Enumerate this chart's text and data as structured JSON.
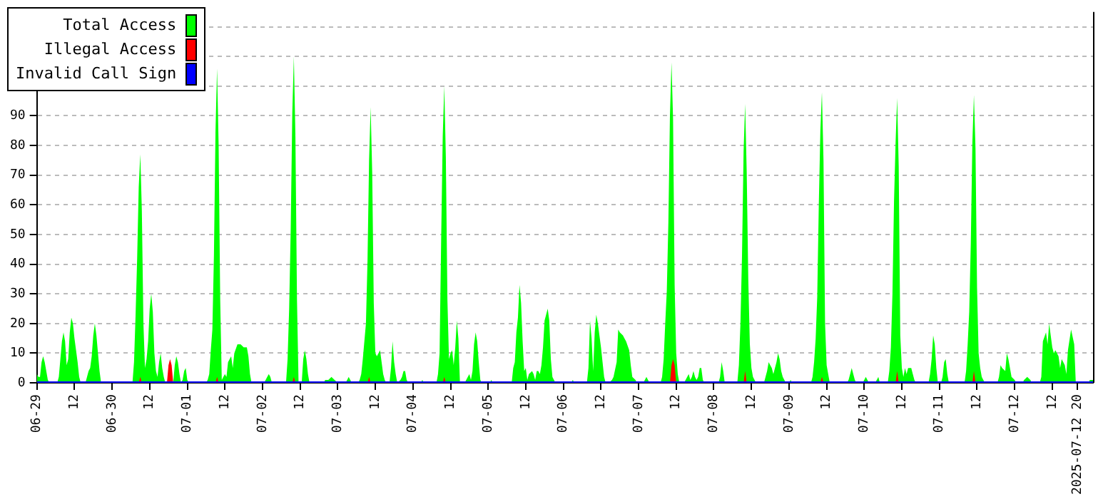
{
  "chart_data": {
    "type": "area",
    "xlim": [
      "2025-06-29T00:00",
      "2025-07-13T01:00"
    ],
    "ylim": [
      0,
      125
    ],
    "xticks": [
      {
        "value": "2025-06-29T00:00",
        "label": "06-29"
      },
      {
        "value": "2025-06-29T12:00",
        "label": "12"
      },
      {
        "value": "2025-06-30T00:00",
        "label": "06-30"
      },
      {
        "value": "2025-06-30T12:00",
        "label": "12"
      },
      {
        "value": "2025-07-01T00:00",
        "label": "07-01"
      },
      {
        "value": "2025-07-01T12:00",
        "label": "12"
      },
      {
        "value": "2025-07-02T00:00",
        "label": "07-02"
      },
      {
        "value": "2025-07-02T12:00",
        "label": "12"
      },
      {
        "value": "2025-07-03T00:00",
        "label": "07-03"
      },
      {
        "value": "2025-07-03T12:00",
        "label": "12"
      },
      {
        "value": "2025-07-04T00:00",
        "label": "07-04"
      },
      {
        "value": "2025-07-04T12:00",
        "label": "12"
      },
      {
        "value": "2025-07-05T00:00",
        "label": "07-05"
      },
      {
        "value": "2025-07-05T12:00",
        "label": "12"
      },
      {
        "value": "2025-07-06T00:00",
        "label": "07-06"
      },
      {
        "value": "2025-07-06T12:00",
        "label": "12"
      },
      {
        "value": "2025-07-07T00:00",
        "label": "07-07"
      },
      {
        "value": "2025-07-07T12:00",
        "label": "12"
      },
      {
        "value": "2025-07-08T00:00",
        "label": "07-08"
      },
      {
        "value": "2025-07-08T12:00",
        "label": "12"
      },
      {
        "value": "2025-07-09T00:00",
        "label": "07-09"
      },
      {
        "value": "2025-07-09T12:00",
        "label": "12"
      },
      {
        "value": "2025-07-10T00:00",
        "label": "07-10"
      },
      {
        "value": "2025-07-10T12:00",
        "label": "12"
      },
      {
        "value": "2025-07-11T00:00",
        "label": "07-11"
      },
      {
        "value": "2025-07-11T12:00",
        "label": "12"
      },
      {
        "value": "2025-07-12T00:00",
        "label": "07-12"
      },
      {
        "value": "2025-07-12T12:00",
        "label": "12"
      },
      {
        "value": "2025-07-12T20:00",
        "label": "2025-07-12 20"
      }
    ],
    "yticks": [
      0,
      10,
      20,
      30,
      40,
      50,
      60,
      70,
      80,
      90,
      {
        "value": 100,
        "label": null
      },
      {
        "value": 110,
        "label": null
      },
      {
        "value": 120,
        "label": null
      }
    ],
    "grid": "y",
    "legend": "top left",
    "series": [
      {
        "name": "Total Access",
        "color": "#00ff00",
        "type": "area",
        "x": [
          "2025-06-29T00:00",
          "2025-06-29T00:30",
          "2025-06-29T01:00",
          "2025-06-29T01:30",
          "2025-06-29T02:00",
          "2025-06-29T02:30",
          "2025-06-29T03:00",
          "2025-06-29T03:30",
          "2025-06-29T04:00",
          "2025-06-29T06:30",
          "2025-06-29T07:00",
          "2025-06-29T07:30",
          "2025-06-29T08:00",
          "2025-06-29T08:30",
          "2025-06-29T09:00",
          "2025-06-29T09:30",
          "2025-06-29T10:00",
          "2025-06-29T10:30",
          "2025-06-29T11:00",
          "2025-06-29T11:30",
          "2025-06-29T12:00",
          "2025-06-29T12:30",
          "2025-06-29T13:00",
          "2025-06-29T13:30",
          "2025-06-29T14:00",
          "2025-06-29T15:30",
          "2025-06-29T16:00",
          "2025-06-29T16:30",
          "2025-06-29T17:00",
          "2025-06-29T17:30",
          "2025-06-29T18:00",
          "2025-06-29T18:30",
          "2025-06-29T19:00",
          "2025-06-29T19:30",
          "2025-06-29T20:00",
          "2025-06-29T20:30",
          "2025-06-30T06:30",
          "2025-06-30T07:00",
          "2025-06-30T07:30",
          "2025-06-30T08:00",
          "2025-06-30T08:30",
          "2025-06-30T09:00",
          "2025-06-30T09:30",
          "2025-06-30T10:00",
          "2025-06-30T10:30",
          "2025-06-30T11:00",
          "2025-06-30T11:30",
          "2025-06-30T12:00",
          "2025-06-30T12:30",
          "2025-06-30T13:00",
          "2025-06-30T13:30",
          "2025-06-30T14:00",
          "2025-06-30T14:30",
          "2025-06-30T15:00",
          "2025-06-30T15:30",
          "2025-06-30T16:00",
          "2025-06-30T16:30",
          "2025-06-30T17:00",
          "2025-06-30T19:30",
          "2025-06-30T20:00",
          "2025-06-30T20:30",
          "2025-06-30T21:00",
          "2025-06-30T21:30",
          "2025-06-30T22:00",
          "2025-06-30T22:30",
          "2025-06-30T23:00",
          "2025-06-30T23:30",
          "2025-07-01T00:00",
          "2025-07-01T00:30",
          "2025-07-01T06:00",
          "2025-07-01T06:30",
          "2025-07-01T07:00",
          "2025-07-01T07:30",
          "2025-07-01T08:00",
          "2025-07-01T08:30",
          "2025-07-01T09:00",
          "2025-07-01T09:30",
          "2025-07-01T10:00",
          "2025-07-01T10:30",
          "2025-07-01T11:00",
          "2025-07-01T11:30",
          "2025-07-01T12:00",
          "2025-07-01T12:30",
          "2025-07-01T13:00",
          "2025-07-01T14:00",
          "2025-07-01T14:30",
          "2025-07-01T15:00",
          "2025-07-01T16:00",
          "2025-07-01T17:00",
          "2025-07-01T18:00",
          "2025-07-01T19:00",
          "2025-07-01T19:30",
          "2025-07-01T20:00",
          "2025-07-01T20:30",
          "2025-07-02T00:30",
          "2025-07-02T01:00",
          "2025-07-02T01:30",
          "2025-07-02T02:00",
          "2025-07-02T02:30",
          "2025-07-02T03:00",
          "2025-07-02T07:30",
          "2025-07-02T08:00",
          "2025-07-02T08:30",
          "2025-07-02T09:00",
          "2025-07-02T09:30",
          "2025-07-02T10:00",
          "2025-07-02T10:30",
          "2025-07-02T11:00",
          "2025-07-02T11:30",
          "2025-07-02T12:30",
          "2025-07-02T13:00",
          "2025-07-02T13:30",
          "2025-07-02T14:00",
          "2025-07-02T14:30",
          "2025-07-02T15:00",
          "2025-07-02T19:30",
          "2025-07-02T20:00",
          "2025-07-02T21:00",
          "2025-07-02T22:00",
          "2025-07-02T23:00",
          "2025-07-03T00:00",
          "2025-07-03T02:30",
          "2025-07-03T03:00",
          "2025-07-03T03:30",
          "2025-07-03T04:00",
          "2025-07-03T04:30",
          "2025-07-03T06:30",
          "2025-07-03T07:00",
          "2025-07-03T07:30",
          "2025-07-03T08:00",
          "2025-07-03T08:30",
          "2025-07-03T09:00",
          "2025-07-03T09:30",
          "2025-07-03T10:00",
          "2025-07-03T10:30",
          "2025-07-03T11:00",
          "2025-07-03T11:30",
          "2025-07-03T12:00",
          "2025-07-03T12:30",
          "2025-07-03T13:00",
          "2025-07-03T13:30",
          "2025-07-03T14:00",
          "2025-07-03T14:30",
          "2025-07-03T15:00",
          "2025-07-03T15:30",
          "2025-07-03T16:30",
          "2025-07-03T17:00",
          "2025-07-03T17:30",
          "2025-07-03T18:00",
          "2025-07-03T18:30",
          "2025-07-03T19:00",
          "2025-07-03T20:00",
          "2025-07-03T20:30",
          "2025-07-03T21:00",
          "2025-07-03T21:30",
          "2025-07-03T22:00",
          "2025-07-03T22:30",
          "2025-07-04T02:30",
          "2025-07-04T03:00",
          "2025-07-04T03:30",
          "2025-07-04T07:30",
          "2025-07-04T08:00",
          "2025-07-04T08:30",
          "2025-07-04T09:00",
          "2025-07-04T09:30",
          "2025-07-04T10:00",
          "2025-07-04T10:30",
          "2025-07-04T11:00",
          "2025-07-04T11:30",
          "2025-07-04T12:00",
          "2025-07-04T12:30",
          "2025-07-04T13:00",
          "2025-07-04T13:30",
          "2025-07-04T14:00",
          "2025-07-04T14:30",
          "2025-07-04T15:00",
          "2025-07-04T16:30",
          "2025-07-04T17:00",
          "2025-07-04T17:30",
          "2025-07-04T18:00",
          "2025-07-04T18:30",
          "2025-07-04T19:00",
          "2025-07-04T19:30",
          "2025-07-04T20:00",
          "2025-07-04T20:30",
          "2025-07-04T21:00",
          "2025-07-04T21:30",
          "2025-07-04T22:00",
          "2025-07-05T00:30",
          "2025-07-05T01:00",
          "2025-07-05T01:30",
          "2025-07-05T07:30",
          "2025-07-05T08:00",
          "2025-07-05T08:30",
          "2025-07-05T09:00",
          "2025-07-05T09:30",
          "2025-07-05T10:00",
          "2025-07-05T10:30",
          "2025-07-05T11:00",
          "2025-07-05T11:30",
          "2025-07-05T12:00",
          "2025-07-05T12:30",
          "2025-07-05T13:00",
          "2025-07-05T14:00",
          "2025-07-05T14:30",
          "2025-07-05T15:00",
          "2025-07-05T15:30",
          "2025-07-05T16:00",
          "2025-07-05T16:30",
          "2025-07-05T17:00",
          "2025-07-05T17:30",
          "2025-07-05T18:00",
          "2025-07-05T19:00",
          "2025-07-05T19:30",
          "2025-07-05T20:00",
          "2025-07-05T20:30",
          "2025-07-05T21:00",
          "2025-07-05T21:30",
          "2025-07-06T02:30",
          "2025-07-06T03:00",
          "2025-07-06T03:30",
          "2025-07-06T07:30",
          "2025-07-06T08:00",
          "2025-07-06T08:30",
          "2025-07-06T09:00",
          "2025-07-06T09:30",
          "2025-07-06T10:00",
          "2025-07-06T10:30",
          "2025-07-06T11:00",
          "2025-07-06T11:30",
          "2025-07-06T12:00",
          "2025-07-06T12:30",
          "2025-07-06T13:00",
          "2025-07-06T13:30",
          "2025-07-06T14:30",
          "2025-07-06T15:30",
          "2025-07-06T16:00",
          "2025-07-06T17:00",
          "2025-07-06T17:30",
          "2025-07-06T18:00",
          "2025-07-06T19:00",
          "2025-07-06T19:30",
          "2025-07-06T20:00",
          "2025-07-06T21:00",
          "2025-07-06T21:30",
          "2025-07-06T22:00",
          "2025-07-06T23:00",
          "2025-07-06T23:30",
          "2025-07-07T01:30",
          "2025-07-07T02:00",
          "2025-07-07T02:30",
          "2025-07-07T03:00",
          "2025-07-07T03:30",
          "2025-07-07T07:00",
          "2025-07-07T07:30",
          "2025-07-07T08:00",
          "2025-07-07T08:30",
          "2025-07-07T09:00",
          "2025-07-07T09:30",
          "2025-07-07T10:00",
          "2025-07-07T10:30",
          "2025-07-07T11:00",
          "2025-07-07T11:30",
          "2025-07-07T12:00",
          "2025-07-07T12:30",
          "2025-07-07T13:00",
          "2025-07-07T14:30",
          "2025-07-07T15:00",
          "2025-07-07T15:30",
          "2025-07-07T16:00",
          "2025-07-07T16:30",
          "2025-07-07T17:00",
          "2025-07-07T17:30",
          "2025-07-07T18:00",
          "2025-07-07T18:30",
          "2025-07-07T19:00",
          "2025-07-07T19:30",
          "2025-07-07T20:00",
          "2025-07-07T20:30",
          "2025-07-07T21:00",
          "2025-07-08T01:30",
          "2025-07-08T02:00",
          "2025-07-08T02:30",
          "2025-07-08T03:00",
          "2025-07-08T03:30",
          "2025-07-08T07:30",
          "2025-07-08T08:00",
          "2025-07-08T08:30",
          "2025-07-08T09:00",
          "2025-07-08T09:30",
          "2025-07-08T10:00",
          "2025-07-08T10:30",
          "2025-07-08T11:00",
          "2025-07-08T11:30",
          "2025-07-08T12:00",
          "2025-07-08T12:30",
          "2025-07-08T13:00",
          "2025-07-08T13:30",
          "2025-07-08T16:00",
          "2025-07-08T16:30",
          "2025-07-08T17:00",
          "2025-07-08T17:30",
          "2025-07-08T18:00",
          "2025-07-08T18:30",
          "2025-07-08T19:00",
          "2025-07-08T20:00",
          "2025-07-08T20:30",
          "2025-07-08T21:00",
          "2025-07-08T21:30",
          "2025-07-08T22:00",
          "2025-07-08T22:30",
          "2025-07-08T23:00",
          "2025-07-09T00:00",
          "2025-07-09T00:30",
          "2025-07-09T01:00",
          "2025-07-09T07:00",
          "2025-07-09T07:30",
          "2025-07-09T08:00",
          "2025-07-09T08:30",
          "2025-07-09T09:00",
          "2025-07-09T09:30",
          "2025-07-09T10:00",
          "2025-07-09T10:30",
          "2025-07-09T11:00",
          "2025-07-09T11:30",
          "2025-07-09T12:00",
          "2025-07-09T12:30",
          "2025-07-09T13:00",
          "2025-07-09T18:30",
          "2025-07-09T19:00",
          "2025-07-09T19:30",
          "2025-07-09T20:00",
          "2025-07-09T20:30",
          "2025-07-09T21:00",
          "2025-07-09T21:30",
          "2025-07-09T23:30",
          "2025-07-10T00:00",
          "2025-07-10T00:30",
          "2025-07-10T01:00",
          "2025-07-10T01:30",
          "2025-07-10T03:30",
          "2025-07-10T04:00",
          "2025-07-10T04:30",
          "2025-07-10T05:00",
          "2025-07-10T07:30",
          "2025-07-10T08:00",
          "2025-07-10T08:30",
          "2025-07-10T09:00",
          "2025-07-10T09:30",
          "2025-07-10T10:00",
          "2025-07-10T10:30",
          "2025-07-10T11:00",
          "2025-07-10T11:30",
          "2025-07-10T12:00",
          "2025-07-10T12:30",
          "2025-07-10T13:00",
          "2025-07-10T13:30",
          "2025-07-10T14:00",
          "2025-07-10T15:00",
          "2025-07-10T15:30",
          "2025-07-10T16:00",
          "2025-07-10T16:30",
          "2025-07-10T20:30",
          "2025-07-10T21:00",
          "2025-07-10T21:30",
          "2025-07-10T22:00",
          "2025-07-10T22:30",
          "2025-07-10T23:00",
          "2025-07-10T23:30",
          "2025-07-11T00:30",
          "2025-07-11T01:00",
          "2025-07-11T01:30",
          "2025-07-11T02:00",
          "2025-07-11T02:30",
          "2025-07-11T03:00",
          "2025-07-11T08:00",
          "2025-07-11T08:30",
          "2025-07-11T09:00",
          "2025-07-11T09:30",
          "2025-07-11T10:00",
          "2025-07-11T10:30",
          "2025-07-11T11:00",
          "2025-07-11T11:30",
          "2025-07-11T12:00",
          "2025-07-11T12:30",
          "2025-07-11T13:00",
          "2025-07-11T13:30",
          "2025-07-11T14:00",
          "2025-07-11T14:30",
          "2025-07-11T18:30",
          "2025-07-11T19:00",
          "2025-07-11T19:30",
          "2025-07-11T20:00",
          "2025-07-11T21:00",
          "2025-07-11T21:30",
          "2025-07-11T22:00",
          "2025-07-11T23:00",
          "2025-07-12T00:00",
          "2025-07-12T00:30",
          "2025-07-12T02:30",
          "2025-07-12T03:00",
          "2025-07-12T04:00",
          "2025-07-12T05:00",
          "2025-07-12T05:30",
          "2025-07-12T08:00",
          "2025-07-12T08:30",
          "2025-07-12T09:00",
          "2025-07-12T10:00",
          "2025-07-12T10:30",
          "2025-07-12T11:00",
          "2025-07-12T12:00",
          "2025-07-12T12:30",
          "2025-07-12T13:00",
          "2025-07-12T14:00",
          "2025-07-12T14:30",
          "2025-07-12T15:00",
          "2025-07-12T16:00",
          "2025-07-12T16:30",
          "2025-07-12T17:00",
          "2025-07-12T18:00",
          "2025-07-12T19:00",
          "2025-07-12T19:30",
          "2025-07-12T23:30",
          "2025-07-13T00:00",
          "2025-07-13T01:00"
        ],
        "values": [
          3,
          2,
          2,
          7,
          9,
          7,
          4,
          1,
          0,
          0,
          2,
          8,
          14,
          17,
          14,
          6,
          8,
          17,
          22,
          20,
          15,
          11,
          7,
          2,
          0,
          0,
          2,
          4,
          5,
          9,
          16,
          20,
          16,
          10,
          4,
          0,
          0,
          7,
          23,
          42,
          66,
          77,
          58,
          20,
          5,
          8,
          14,
          25,
          30,
          24,
          10,
          4,
          2,
          7,
          10,
          5,
          2,
          0,
          0,
          6,
          9,
          7,
          3,
          0,
          1,
          4,
          5,
          1,
          0,
          0,
          1,
          3,
          11,
          18,
          43,
          85,
          106,
          80,
          28,
          1,
          2,
          3,
          2,
          7,
          9,
          5,
          10,
          13,
          13,
          12,
          12,
          9,
          3,
          0,
          0,
          1,
          2,
          3,
          2,
          0,
          0,
          8,
          25,
          52,
          91,
          110,
          83,
          28,
          0,
          0,
          8,
          11,
          8,
          3,
          0,
          0,
          1,
          1,
          2,
          1,
          0,
          0,
          1,
          2,
          1,
          0,
          0,
          1,
          3,
          8,
          14,
          20,
          41,
          75,
          93,
          71,
          27,
          10,
          9,
          10,
          11,
          7,
          3,
          1,
          0,
          0,
          5,
          14,
          7,
          3,
          0,
          1,
          2,
          4,
          4,
          1,
          0,
          0,
          1,
          0,
          0,
          3,
          10,
          48,
          83,
          100,
          76,
          28,
          8,
          10,
          11,
          6,
          12,
          21,
          15,
          0,
          0,
          1,
          2,
          3,
          1,
          4,
          13,
          17,
          14,
          7,
          1,
          0,
          0,
          1,
          0,
          0,
          5,
          7,
          17,
          22,
          33,
          27,
          14,
          4,
          5,
          1,
          3,
          4,
          3,
          1,
          4,
          4,
          3,
          6,
          12,
          21,
          25,
          21,
          8,
          2,
          1,
          0,
          0,
          1,
          0,
          0,
          5,
          21,
          15,
          4,
          17,
          23,
          20,
          16,
          12,
          7,
          2,
          0,
          0,
          1,
          2,
          7,
          18,
          17,
          16,
          15,
          14,
          11,
          6,
          2,
          1,
          0,
          0,
          1,
          2,
          1,
          0,
          0,
          2,
          8,
          20,
          31,
          54,
          90,
          108,
          89,
          33,
          10,
          3,
          0,
          0,
          1,
          2,
          3,
          1,
          2,
          4,
          2,
          1,
          2,
          5,
          5,
          1,
          0,
          0,
          2,
          7,
          4,
          0,
          0,
          6,
          20,
          43,
          78,
          94,
          71,
          35,
          13,
          5,
          2,
          1,
          0,
          0,
          2,
          4,
          7,
          6,
          5,
          3,
          7,
          10,
          8,
          4,
          2,
          1,
          0,
          0,
          1,
          0,
          0,
          2,
          7,
          15,
          29,
          60,
          85,
          98,
          75,
          20,
          6,
          3,
          0,
          0,
          1,
          3,
          5,
          3,
          1,
          0,
          0,
          1,
          2,
          1,
          0,
          0,
          1,
          2,
          0,
          0,
          4,
          12,
          30,
          61,
          81,
          96,
          73,
          16,
          5,
          2,
          5,
          3,
          5,
          5,
          3,
          1,
          0,
          0,
          3,
          8,
          16,
          13,
          5,
          0,
          0,
          2,
          7,
          8,
          3,
          0,
          0,
          4,
          13,
          24,
          47,
          81,
          97,
          79,
          32,
          10,
          5,
          2,
          1,
          0,
          0,
          2,
          6,
          5,
          4,
          10,
          8,
          2,
          1,
          0,
          0,
          1,
          2,
          1,
          0,
          0,
          2,
          14,
          17,
          13,
          20,
          12,
          10,
          11,
          9,
          5,
          8,
          6,
          3,
          11,
          18,
          13,
          0,
          0,
          1,
          1
        ]
      },
      {
        "name": "Illegal Access",
        "color": "#ff0000",
        "type": "area",
        "x": [
          "2025-06-29T00:00",
          "2025-06-30T08:30",
          "2025-06-30T09:00",
          "2025-06-30T09:30",
          "2025-06-30T17:30",
          "2025-06-30T18:00",
          "2025-06-30T18:30",
          "2025-06-30T19:00",
          "2025-06-30T19:30",
          "2025-07-01T09:00",
          "2025-07-01T09:30",
          "2025-07-01T10:00",
          "2025-07-02T09:30",
          "2025-07-02T10:00",
          "2025-07-02T10:30",
          "2025-07-03T09:30",
          "2025-07-03T10:00",
          "2025-07-03T10:30",
          "2025-07-04T09:30",
          "2025-07-04T10:00",
          "2025-07-04T10:30",
          "2025-07-07T10:00",
          "2025-07-07T10:30",
          "2025-07-07T11:00",
          "2025-07-07T11:30",
          "2025-07-07T12:00",
          "2025-07-08T09:30",
          "2025-07-08T10:00",
          "2025-07-08T10:30",
          "2025-07-09T10:00",
          "2025-07-09T10:30",
          "2025-07-09T11:00",
          "2025-07-10T10:00",
          "2025-07-10T10:30",
          "2025-07-10T11:00",
          "2025-07-11T10:30",
          "2025-07-11T11:00",
          "2025-07-11T11:30",
          "2025-07-13T01:00"
        ],
        "values": [
          0,
          0,
          2,
          0,
          0,
          6,
          8,
          6,
          0,
          0,
          2,
          0,
          0,
          2,
          0,
          0,
          2,
          0,
          0,
          2,
          0,
          0,
          6,
          8,
          6,
          0,
          0,
          4,
          0,
          0,
          2,
          0,
          0,
          4,
          0,
          0,
          4,
          0,
          0
        ]
      },
      {
        "name": "Invalid Call Sign",
        "color": "#0000ff",
        "type": "line",
        "x": [
          "2025-06-29T00:00",
          "2025-07-13T01:00"
        ],
        "values": [
          0,
          0
        ]
      }
    ]
  }
}
